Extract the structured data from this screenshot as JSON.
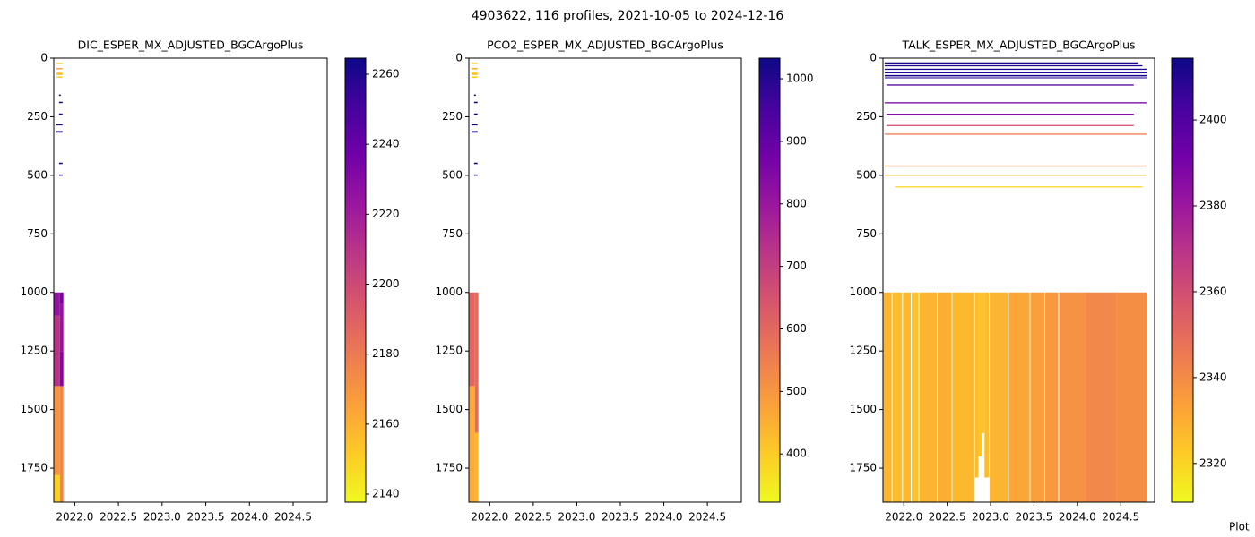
{
  "title": "4903622, 116 profiles, 2021-10-05 to 2024-12-16",
  "footer": "Plot",
  "chart_data": [
    {
      "type": "heatmap",
      "title": "DIC_ESPER_MX_ADJUSTED_BGCArgoPlus",
      "colormap": "plasma_r",
      "xlim": [
        2021.76,
        2024.89
      ],
      "xticks": [
        {
          "value": 2022.0,
          "label": "2022.0"
        },
        {
          "value": 2022.5,
          "label": "2022.5"
        },
        {
          "value": 2023.0,
          "label": "2023.0"
        },
        {
          "value": 2023.5,
          "label": "2023.5"
        },
        {
          "value": 2024.0,
          "label": "2024.0"
        },
        {
          "value": 2024.5,
          "label": "2024.5"
        }
      ],
      "ylim": [
        1895,
        0
      ],
      "yticks": [
        0,
        250,
        500,
        750,
        1000,
        1250,
        1500,
        1750
      ],
      "clim": [
        2137.7,
        2264.6
      ],
      "cticks": [
        2140,
        2160,
        2180,
        2200,
        2220,
        2240,
        2260
      ],
      "cells": [
        {
          "x": [
            2021.79,
            2021.86
          ],
          "y": [
            20,
            27
          ],
          "value": 2150
        },
        {
          "x": [
            2021.79,
            2021.86
          ],
          "y": [
            42,
            48
          ],
          "value": 2165
        },
        {
          "x": [
            2021.79,
            2021.86
          ],
          "y": [
            62,
            72
          ],
          "value": 2155
        },
        {
          "x": [
            2021.79,
            2021.86
          ],
          "y": [
            78,
            84
          ],
          "value": 2150
        },
        {
          "x": [
            2021.82,
            2021.84
          ],
          "y": [
            155,
            161
          ],
          "value": 2262
        },
        {
          "x": [
            2021.82,
            2021.86
          ],
          "y": [
            186,
            192
          ],
          "value": 2262
        },
        {
          "x": [
            2021.82,
            2021.86
          ],
          "y": [
            236,
            242
          ],
          "value": 2262
        },
        {
          "x": [
            2021.79,
            2021.86
          ],
          "y": [
            281,
            287
          ],
          "value": 2262
        },
        {
          "x": [
            2021.79,
            2021.86
          ],
          "y": [
            311,
            318
          ],
          "value": 2262
        },
        {
          "x": [
            2021.82,
            2021.86
          ],
          "y": [
            446,
            452
          ],
          "value": 2262
        },
        {
          "x": [
            2021.82,
            2021.86
          ],
          "y": [
            496,
            502
          ],
          "value": 2262
        },
        {
          "x": [
            2021.76,
            2021.83
          ],
          "y": [
            1000,
            1100
          ],
          "value": 2225
        },
        {
          "x": [
            2021.76,
            2021.83
          ],
          "y": [
            1100,
            1400
          ],
          "value": 2210
        },
        {
          "x": [
            2021.76,
            2021.83
          ],
          "y": [
            1400,
            1780
          ],
          "value": 2170
        },
        {
          "x": [
            2021.76,
            2021.83
          ],
          "y": [
            1780,
            1895
          ],
          "value": 2150
        },
        {
          "x": [
            2021.83,
            2021.87
          ],
          "y": [
            1000,
            1050
          ],
          "value": 2235
        },
        {
          "x": [
            2021.83,
            2021.87
          ],
          "y": [
            1050,
            1250
          ],
          "value": 2225
        },
        {
          "x": [
            2021.83,
            2021.87
          ],
          "y": [
            1250,
            1400
          ],
          "value": 2232
        },
        {
          "x": [
            2021.83,
            2021.87
          ],
          "y": [
            1400,
            1895
          ],
          "value": 2175
        }
      ]
    },
    {
      "type": "heatmap",
      "title": "PCO2_ESPER_MX_ADJUSTED_BGCArgoPlus",
      "colormap": "plasma_r",
      "xlim": [
        2021.76,
        2024.89
      ],
      "xticks": [
        {
          "value": 2022.0,
          "label": "2022.0"
        },
        {
          "value": 2022.5,
          "label": "2022.5"
        },
        {
          "value": 2023.0,
          "label": "2023.0"
        },
        {
          "value": 2023.5,
          "label": "2023.5"
        },
        {
          "value": 2024.0,
          "label": "2024.0"
        },
        {
          "value": 2024.5,
          "label": "2024.5"
        }
      ],
      "ylim": [
        1895,
        0
      ],
      "yticks": [
        0,
        250,
        500,
        750,
        1000,
        1250,
        1500,
        1750
      ],
      "clim": [
        323,
        1033
      ],
      "cticks": [
        400,
        500,
        600,
        700,
        800,
        900,
        1000
      ],
      "cells": [
        {
          "x": [
            2021.79,
            2021.86
          ],
          "y": [
            20,
            27
          ],
          "value": 400
        },
        {
          "x": [
            2021.79,
            2021.86
          ],
          "y": [
            42,
            48
          ],
          "value": 450
        },
        {
          "x": [
            2021.79,
            2021.86
          ],
          "y": [
            62,
            72
          ],
          "value": 420
        },
        {
          "x": [
            2021.79,
            2021.86
          ],
          "y": [
            78,
            84
          ],
          "value": 400
        },
        {
          "x": [
            2021.82,
            2021.84
          ],
          "y": [
            155,
            161
          ],
          "value": 1030
        },
        {
          "x": [
            2021.82,
            2021.86
          ],
          "y": [
            186,
            192
          ],
          "value": 1030
        },
        {
          "x": [
            2021.82,
            2021.86
          ],
          "y": [
            236,
            242
          ],
          "value": 1030
        },
        {
          "x": [
            2021.79,
            2021.86
          ],
          "y": [
            281,
            287
          ],
          "value": 1030
        },
        {
          "x": [
            2021.79,
            2021.86
          ],
          "y": [
            311,
            318
          ],
          "value": 1030
        },
        {
          "x": [
            2021.82,
            2021.86
          ],
          "y": [
            446,
            452
          ],
          "value": 1030
        },
        {
          "x": [
            2021.82,
            2021.86
          ],
          "y": [
            496,
            502
          ],
          "value": 1030
        },
        {
          "x": [
            2021.76,
            2021.83
          ],
          "y": [
            1000,
            1400
          ],
          "value": 600
        },
        {
          "x": [
            2021.76,
            2021.83
          ],
          "y": [
            1400,
            1895
          ],
          "value": 460
        },
        {
          "x": [
            2021.83,
            2021.87
          ],
          "y": [
            1000,
            1600
          ],
          "value": 590
        },
        {
          "x": [
            2021.83,
            2021.87
          ],
          "y": [
            1600,
            1895
          ],
          "value": 440
        }
      ]
    },
    {
      "type": "heatmap",
      "title": "TALK_ESPER_MX_ADJUSTED_BGCArgoPlus",
      "colormap": "plasma_r",
      "xlim": [
        2021.76,
        2024.89
      ],
      "xticks": [
        {
          "value": 2022.0,
          "label": "2022.0"
        },
        {
          "value": 2022.5,
          "label": "2022.5"
        },
        {
          "value": 2023.0,
          "label": "2023.0"
        },
        {
          "value": 2023.5,
          "label": "2023.5"
        },
        {
          "value": 2024.0,
          "label": "2024.0"
        },
        {
          "value": 2024.5,
          "label": "2024.5"
        }
      ],
      "ylim": [
        1895,
        0
      ],
      "yticks": [
        0,
        250,
        500,
        750,
        1000,
        1250,
        1500,
        1750
      ],
      "clim": [
        2311,
        2414.4
      ],
      "cticks": [
        2320,
        2340,
        2360,
        2380,
        2400
      ],
      "cells": [
        {
          "x": [
            2021.78,
            2024.7
          ],
          "y": [
            18,
            24
          ],
          "value": 2412
        },
        {
          "x": [
            2021.78,
            2024.75
          ],
          "y": [
            30,
            35
          ],
          "value": 2410
        },
        {
          "x": [
            2021.78,
            2024.8
          ],
          "y": [
            45,
            50
          ],
          "value": 2412
        },
        {
          "x": [
            2021.78,
            2024.8
          ],
          "y": [
            60,
            65
          ],
          "value": 2410
        },
        {
          "x": [
            2021.78,
            2024.8
          ],
          "y": [
            72,
            78
          ],
          "value": 2412
        },
        {
          "x": [
            2021.78,
            2024.8
          ],
          "y": [
            82,
            86
          ],
          "value": 2408
        },
        {
          "x": [
            2021.8,
            2024.65
          ],
          "y": [
            112,
            117
          ],
          "value": 2400
        },
        {
          "x": [
            2021.78,
            2024.8
          ],
          "y": [
            188,
            193
          ],
          "value": 2392
        },
        {
          "x": [
            2021.8,
            2024.65
          ],
          "y": [
            237,
            242
          ],
          "value": 2388
        },
        {
          "x": [
            2021.8,
            2024.65
          ],
          "y": [
            285,
            290
          ],
          "value": 2360
        },
        {
          "x": [
            2021.78,
            2024.8
          ],
          "y": [
            322,
            327
          ],
          "value": 2345
        },
        {
          "x": [
            2021.78,
            2024.8
          ],
          "y": [
            458,
            463
          ],
          "value": 2335
        },
        {
          "x": [
            2021.78,
            2024.8
          ],
          "y": [
            497,
            502
          ],
          "value": 2325
        },
        {
          "x": [
            2021.9,
            2024.75
          ],
          "y": [
            547,
            552
          ],
          "value": 2320
        },
        {
          "x": [
            2021.76,
            2021.86
          ],
          "y": [
            1000,
            1895
          ],
          "value": 2328
        },
        {
          "x": [
            2021.87,
            2021.98
          ],
          "y": [
            1000,
            1895
          ],
          "value": 2326
        },
        {
          "x": [
            2021.99,
            2022.08
          ],
          "y": [
            1000,
            1895
          ],
          "value": 2327
        },
        {
          "x": [
            2022.09,
            2022.17
          ],
          "y": [
            1000,
            1895
          ],
          "value": 2325
        },
        {
          "x": [
            2022.18,
            2022.38
          ],
          "y": [
            1000,
            1895
          ],
          "value": 2328
        },
        {
          "x": [
            2022.39,
            2022.55
          ],
          "y": [
            1000,
            1895
          ],
          "value": 2330
        },
        {
          "x": [
            2022.56,
            2022.81
          ],
          "y": [
            1000,
            1895
          ],
          "value": 2327
        },
        {
          "x": [
            2022.82,
            2022.86
          ],
          "y": [
            1000,
            1790
          ],
          "value": 2326
        },
        {
          "x": [
            2022.86,
            2022.9
          ],
          "y": [
            1000,
            1700
          ],
          "value": 2324
        },
        {
          "x": [
            2022.9,
            2022.93
          ],
          "y": [
            1000,
            1600
          ],
          "value": 2325
        },
        {
          "x": [
            2022.93,
            2022.98
          ],
          "y": [
            1000,
            1790
          ],
          "value": 2326
        },
        {
          "x": [
            2022.99,
            2023.2
          ],
          "y": [
            1000,
            1895
          ],
          "value": 2328
        },
        {
          "x": [
            2023.21,
            2023.45
          ],
          "y": [
            1000,
            1895
          ],
          "value": 2332
        },
        {
          "x": [
            2023.46,
            2023.62
          ],
          "y": [
            1000,
            1895
          ],
          "value": 2334
        },
        {
          "x": [
            2023.63,
            2023.78
          ],
          "y": [
            1000,
            1895
          ],
          "value": 2336
        },
        {
          "x": [
            2023.79,
            2024.1
          ],
          "y": [
            1000,
            1895
          ],
          "value": 2338
        },
        {
          "x": [
            2024.1,
            2024.45
          ],
          "y": [
            1000,
            1895
          ],
          "value": 2341
        },
        {
          "x": [
            2024.45,
            2024.8
          ],
          "y": [
            1000,
            1895
          ],
          "value": 2339
        }
      ]
    }
  ]
}
